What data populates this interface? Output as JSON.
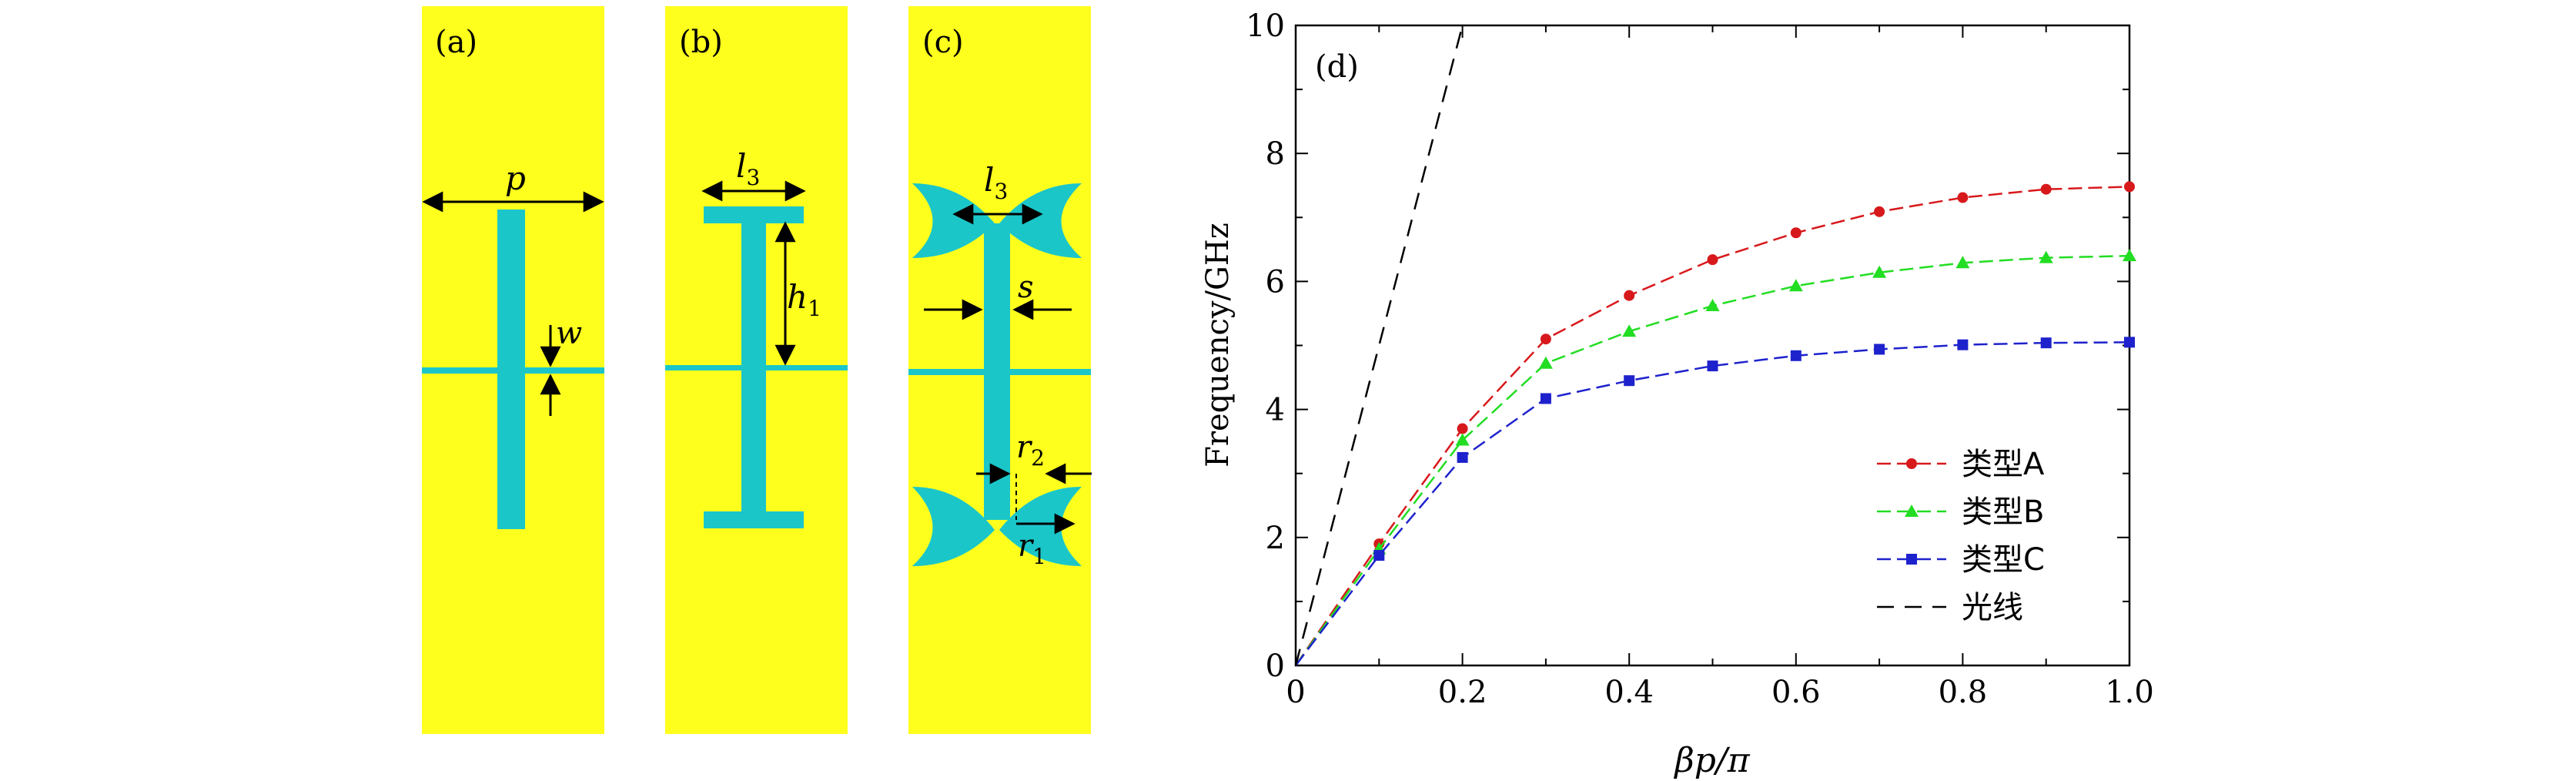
{
  "panels": {
    "a": {
      "label": "(a)",
      "p": "p",
      "w": "w"
    },
    "b": {
      "label": "(b)",
      "l3": "l",
      "l3_sub": "3",
      "h1": "h",
      "h1_sub": "1"
    },
    "c": {
      "label": "(c)",
      "l3": "l",
      "l3_sub": "3",
      "s": "s",
      "r2": "r",
      "r2_sub": "2",
      "r1": "r",
      "r1_sub": "1"
    }
  },
  "colors": {
    "substrate": "#FFFF1E",
    "metal": "#1BC6C9"
  },
  "chart_data": {
    "type": "line",
    "panel_label": "(d)",
    "xlabel": "βp/π",
    "ylabel": "Frequency/GHz",
    "xlim": [
      0,
      1.0
    ],
    "ylim": [
      0,
      10
    ],
    "xticks": [
      "0",
      "0.2",
      "0.4",
      "0.6",
      "0.8",
      "1.0"
    ],
    "yticks": [
      "0",
      "2",
      "4",
      "6",
      "8",
      "10"
    ],
    "legend_position": "bottom-right",
    "series": [
      {
        "name": "类型A",
        "color": "#D7191C",
        "marker": "circle",
        "x": [
          0,
          0.1,
          0.2,
          0.3,
          0.4,
          0.5,
          0.6,
          0.7,
          0.8,
          0.9,
          1.0
        ],
        "y": [
          0,
          1.9,
          3.7,
          5.1,
          5.78,
          6.34,
          6.76,
          7.09,
          7.31,
          7.44,
          7.48
        ]
      },
      {
        "name": "类型B",
        "color": "#22DD22",
        "marker": "triangle",
        "x": [
          0,
          0.1,
          0.2,
          0.3,
          0.4,
          0.5,
          0.6,
          0.7,
          0.8,
          0.9,
          1.0
        ],
        "y": [
          0,
          1.82,
          3.52,
          4.72,
          5.22,
          5.62,
          5.93,
          6.14,
          6.29,
          6.37,
          6.4
        ]
      },
      {
        "name": "类型C",
        "color": "#1E22CC",
        "marker": "square",
        "x": [
          0,
          0.1,
          0.2,
          0.3,
          0.4,
          0.5,
          0.6,
          0.7,
          0.8,
          0.9,
          1.0
        ],
        "y": [
          0,
          1.72,
          3.25,
          4.17,
          4.45,
          4.68,
          4.84,
          4.94,
          5.01,
          5.04,
          5.05
        ]
      },
      {
        "name": "光线",
        "color": "#000000",
        "marker": "none",
        "x": [
          0,
          0.2
        ],
        "y": [
          0,
          10
        ]
      }
    ]
  }
}
